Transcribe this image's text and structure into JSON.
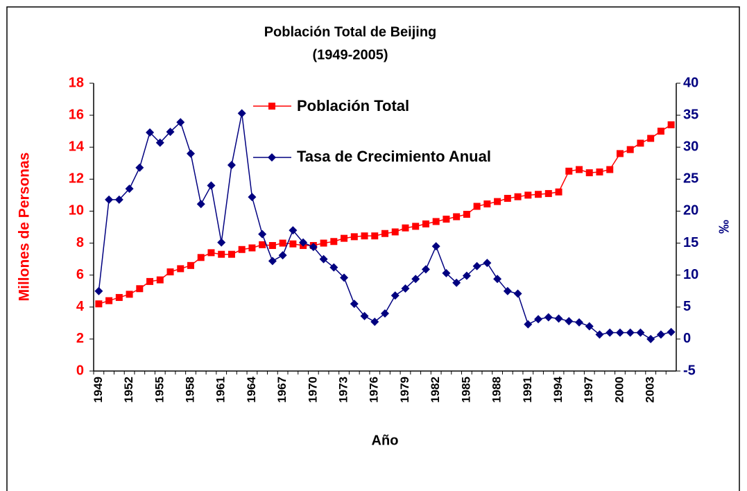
{
  "chart_data": {
    "type": "line",
    "title": "Población Total de Beijing",
    "subtitle": "(1949-2005)",
    "x_label": "Año",
    "y_label": "Millones de Personas",
    "y2_label": "‰",
    "categories": [
      "1949",
      null,
      null,
      "1952",
      null,
      null,
      "1955",
      null,
      null,
      "1958",
      null,
      null,
      "1961",
      null,
      null,
      "1964",
      null,
      null,
      "1967",
      null,
      null,
      "1970",
      null,
      null,
      "1973",
      null,
      null,
      "1976",
      null,
      null,
      "1979",
      null,
      null,
      "1982",
      null,
      null,
      "1985",
      null,
      null,
      "1988",
      null,
      null,
      "1991",
      null,
      null,
      "1994",
      null,
      null,
      "1997",
      null,
      null,
      "2000",
      null,
      null,
      "2003",
      null,
      null
    ],
    "ylim": [
      0,
      18
    ],
    "yticks": [
      0,
      2,
      4,
      6,
      8,
      10,
      12,
      14,
      16,
      18
    ],
    "y2lim": [
      -5,
      40
    ],
    "y2ticks": [
      -5,
      0,
      5,
      10,
      15,
      20,
      25,
      30,
      35,
      40
    ],
    "grid": false,
    "series": [
      {
        "name": "Población Total",
        "color": "#ff0000",
        "marker": "square",
        "values": [
          4.2,
          4.4,
          4.6,
          4.8,
          5.15,
          5.6,
          5.7,
          6.2,
          6.4,
          6.6,
          7.1,
          7.4,
          7.3,
          7.3,
          7.6,
          7.7,
          7.9,
          7.85,
          8.0,
          7.95,
          7.85,
          7.85,
          8.0,
          8.1,
          8.3,
          8.4,
          8.45,
          8.45,
          8.6,
          8.7,
          8.95,
          9.05,
          9.2,
          9.35,
          9.5,
          9.65,
          9.8,
          10.3,
          10.45,
          10.6,
          10.8,
          10.9,
          11.0,
          11.05,
          11.1,
          11.2,
          12.5,
          12.6,
          12.4,
          12.45,
          12.6,
          13.6,
          13.85,
          14.25,
          14.55,
          15.0,
          15.4
        ]
      },
      {
        "name": "Tasa de Crecimiento Anual",
        "color": "#000080",
        "marker": "diamond",
        "axis": "y2",
        "values": [
          7.5,
          21.8,
          21.8,
          23.5,
          26.8,
          32.3,
          30.7,
          32.4,
          33.9,
          29,
          21.1,
          24,
          15.1,
          27.2,
          35.3,
          22.2,
          16.4,
          12.2,
          13.1,
          17,
          15.1,
          14.4,
          12.5,
          11.2,
          9.6,
          5.5,
          3.6,
          2.7,
          4,
          6.8,
          7.9,
          9.4,
          10.9,
          14.5,
          10.3,
          8.8,
          9.9,
          11.4,
          11.9,
          9.4,
          7.5,
          7.1,
          2.3,
          3.1,
          3.4,
          3.2,
          2.8,
          2.6,
          2,
          0.7,
          1,
          1,
          1,
          1,
          0,
          0.7,
          1.1
        ]
      }
    ]
  }
}
